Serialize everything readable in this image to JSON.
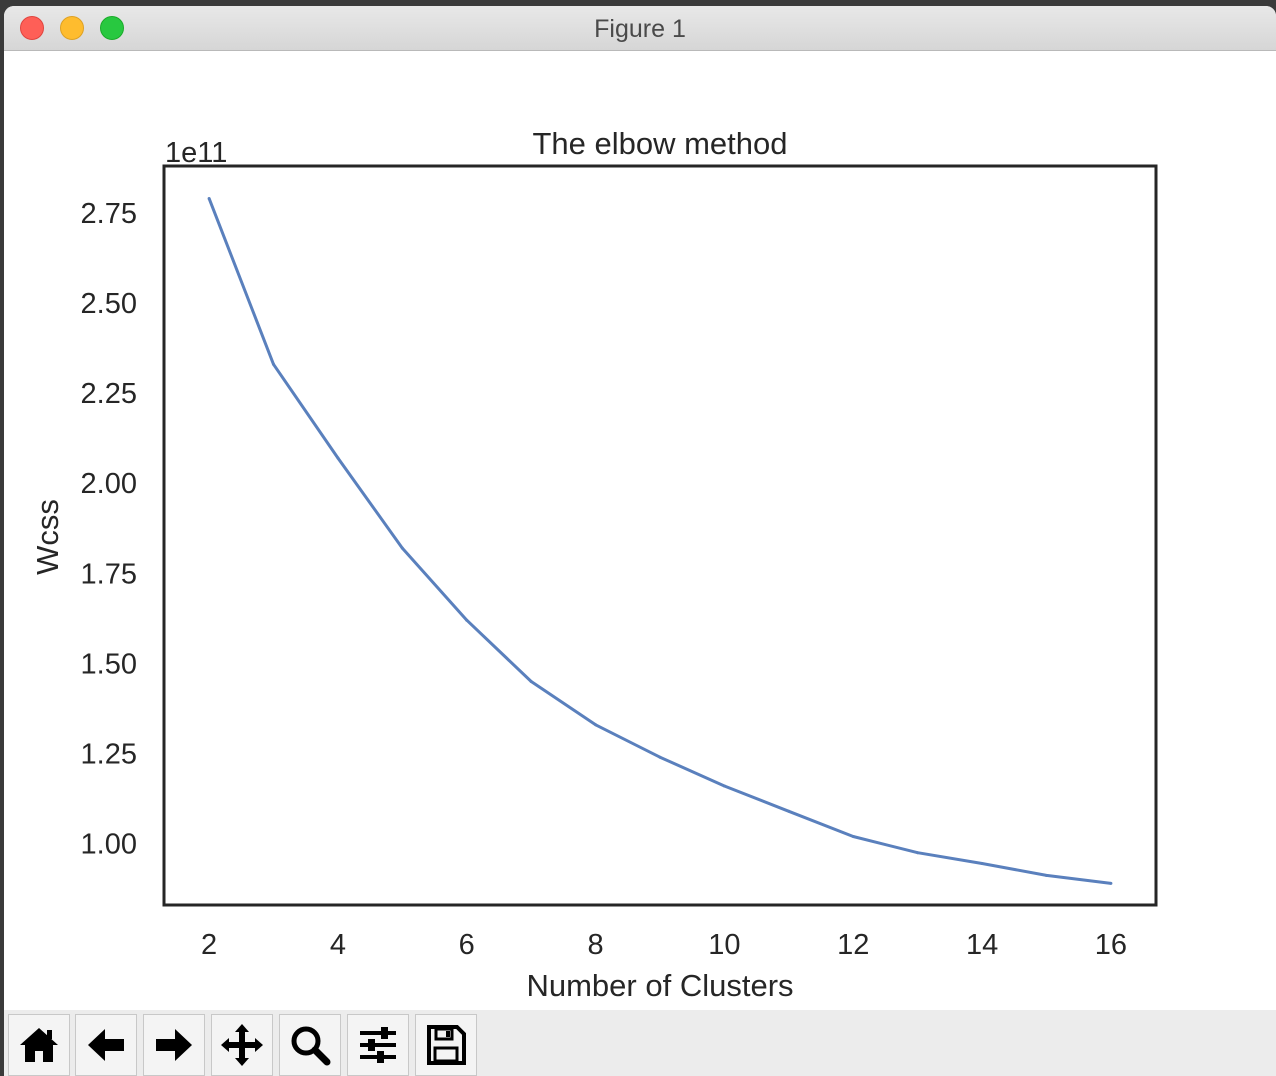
{
  "window": {
    "title": "Figure 1"
  },
  "toolbar": {
    "buttons": [
      {
        "name": "home",
        "icon": "home-icon"
      },
      {
        "name": "back",
        "icon": "arrow-left-icon"
      },
      {
        "name": "forward",
        "icon": "arrow-right-icon"
      },
      {
        "name": "pan",
        "icon": "move-icon"
      },
      {
        "name": "zoom",
        "icon": "search-icon"
      },
      {
        "name": "configure",
        "icon": "sliders-icon"
      },
      {
        "name": "save",
        "icon": "save-icon"
      }
    ]
  },
  "chart_data": {
    "type": "line",
    "title": "The elbow method",
    "xlabel": "Number of Clusters",
    "ylabel": "Wcss",
    "offset_text": "1e11",
    "x": [
      2,
      3,
      4,
      5,
      6,
      7,
      8,
      9,
      10,
      11,
      12,
      13,
      14,
      15,
      16
    ],
    "series": [
      {
        "values": [
          2.79,
          2.33,
          2.07,
          1.82,
          1.62,
          1.45,
          1.33,
          1.24,
          1.16,
          1.09,
          1.02,
          0.975,
          0.945,
          0.912,
          0.89
        ],
        "color": "#5a80bd"
      }
    ],
    "xticks": [
      "2",
      "4",
      "6",
      "8",
      "10",
      "12",
      "14",
      "16"
    ],
    "xtick_values": [
      2,
      4,
      6,
      8,
      10,
      12,
      14,
      16
    ],
    "yticks": [
      "1.00",
      "1.25",
      "1.50",
      "1.75",
      "2.00",
      "2.25",
      "2.50",
      "2.75"
    ],
    "ytick_values": [
      1.0,
      1.25,
      1.5,
      1.75,
      2.0,
      2.25,
      2.5,
      2.75
    ],
    "xlim": [
      1.3,
      16.7
    ],
    "ylim": [
      0.83,
      2.88
    ],
    "grid": false
  }
}
